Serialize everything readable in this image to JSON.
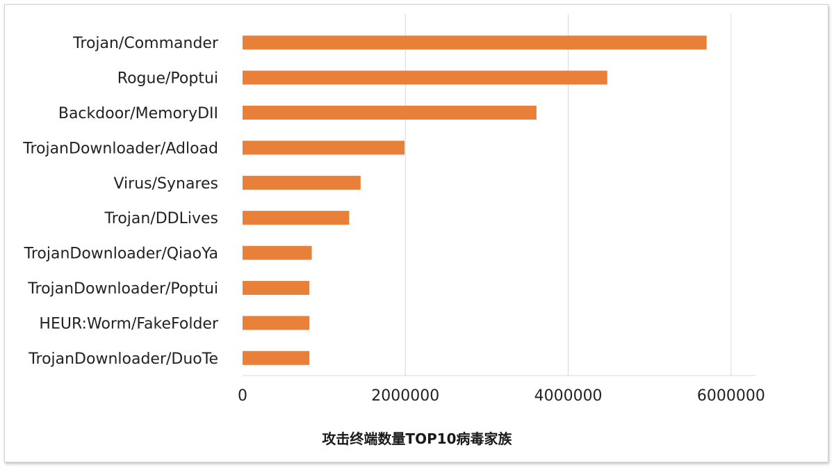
{
  "chart_data": {
    "type": "bar",
    "orientation": "horizontal",
    "title": "攻击终端数量TOP10病毒家族",
    "categories": [
      "Trojan/Commander",
      "Rogue/Poptui",
      "Backdoor/MemoryDII",
      "TrojanDownloader/Adload",
      "Virus/Synares",
      "Trojan/DDLives",
      "TrojanDownloader/QiaoYa",
      "TrojanDownloader/Poptui",
      "HEUR:Worm/FakeFolder",
      "TrojanDownloader/DuoTe"
    ],
    "values": [
      5700000,
      4480000,
      3610000,
      1990000,
      1450000,
      1310000,
      850000,
      820000,
      820000,
      820000
    ],
    "xlim": [
      0,
      6300000
    ],
    "xticks": [
      0,
      2000000,
      4000000,
      6000000
    ],
    "xtick_labels": [
      "0",
      "2000000",
      "4000000",
      "6000000"
    ],
    "grid": "vertical",
    "legend": "none",
    "bar_color": "#e8803a",
    "grid_color": "#d9d9d9"
  }
}
